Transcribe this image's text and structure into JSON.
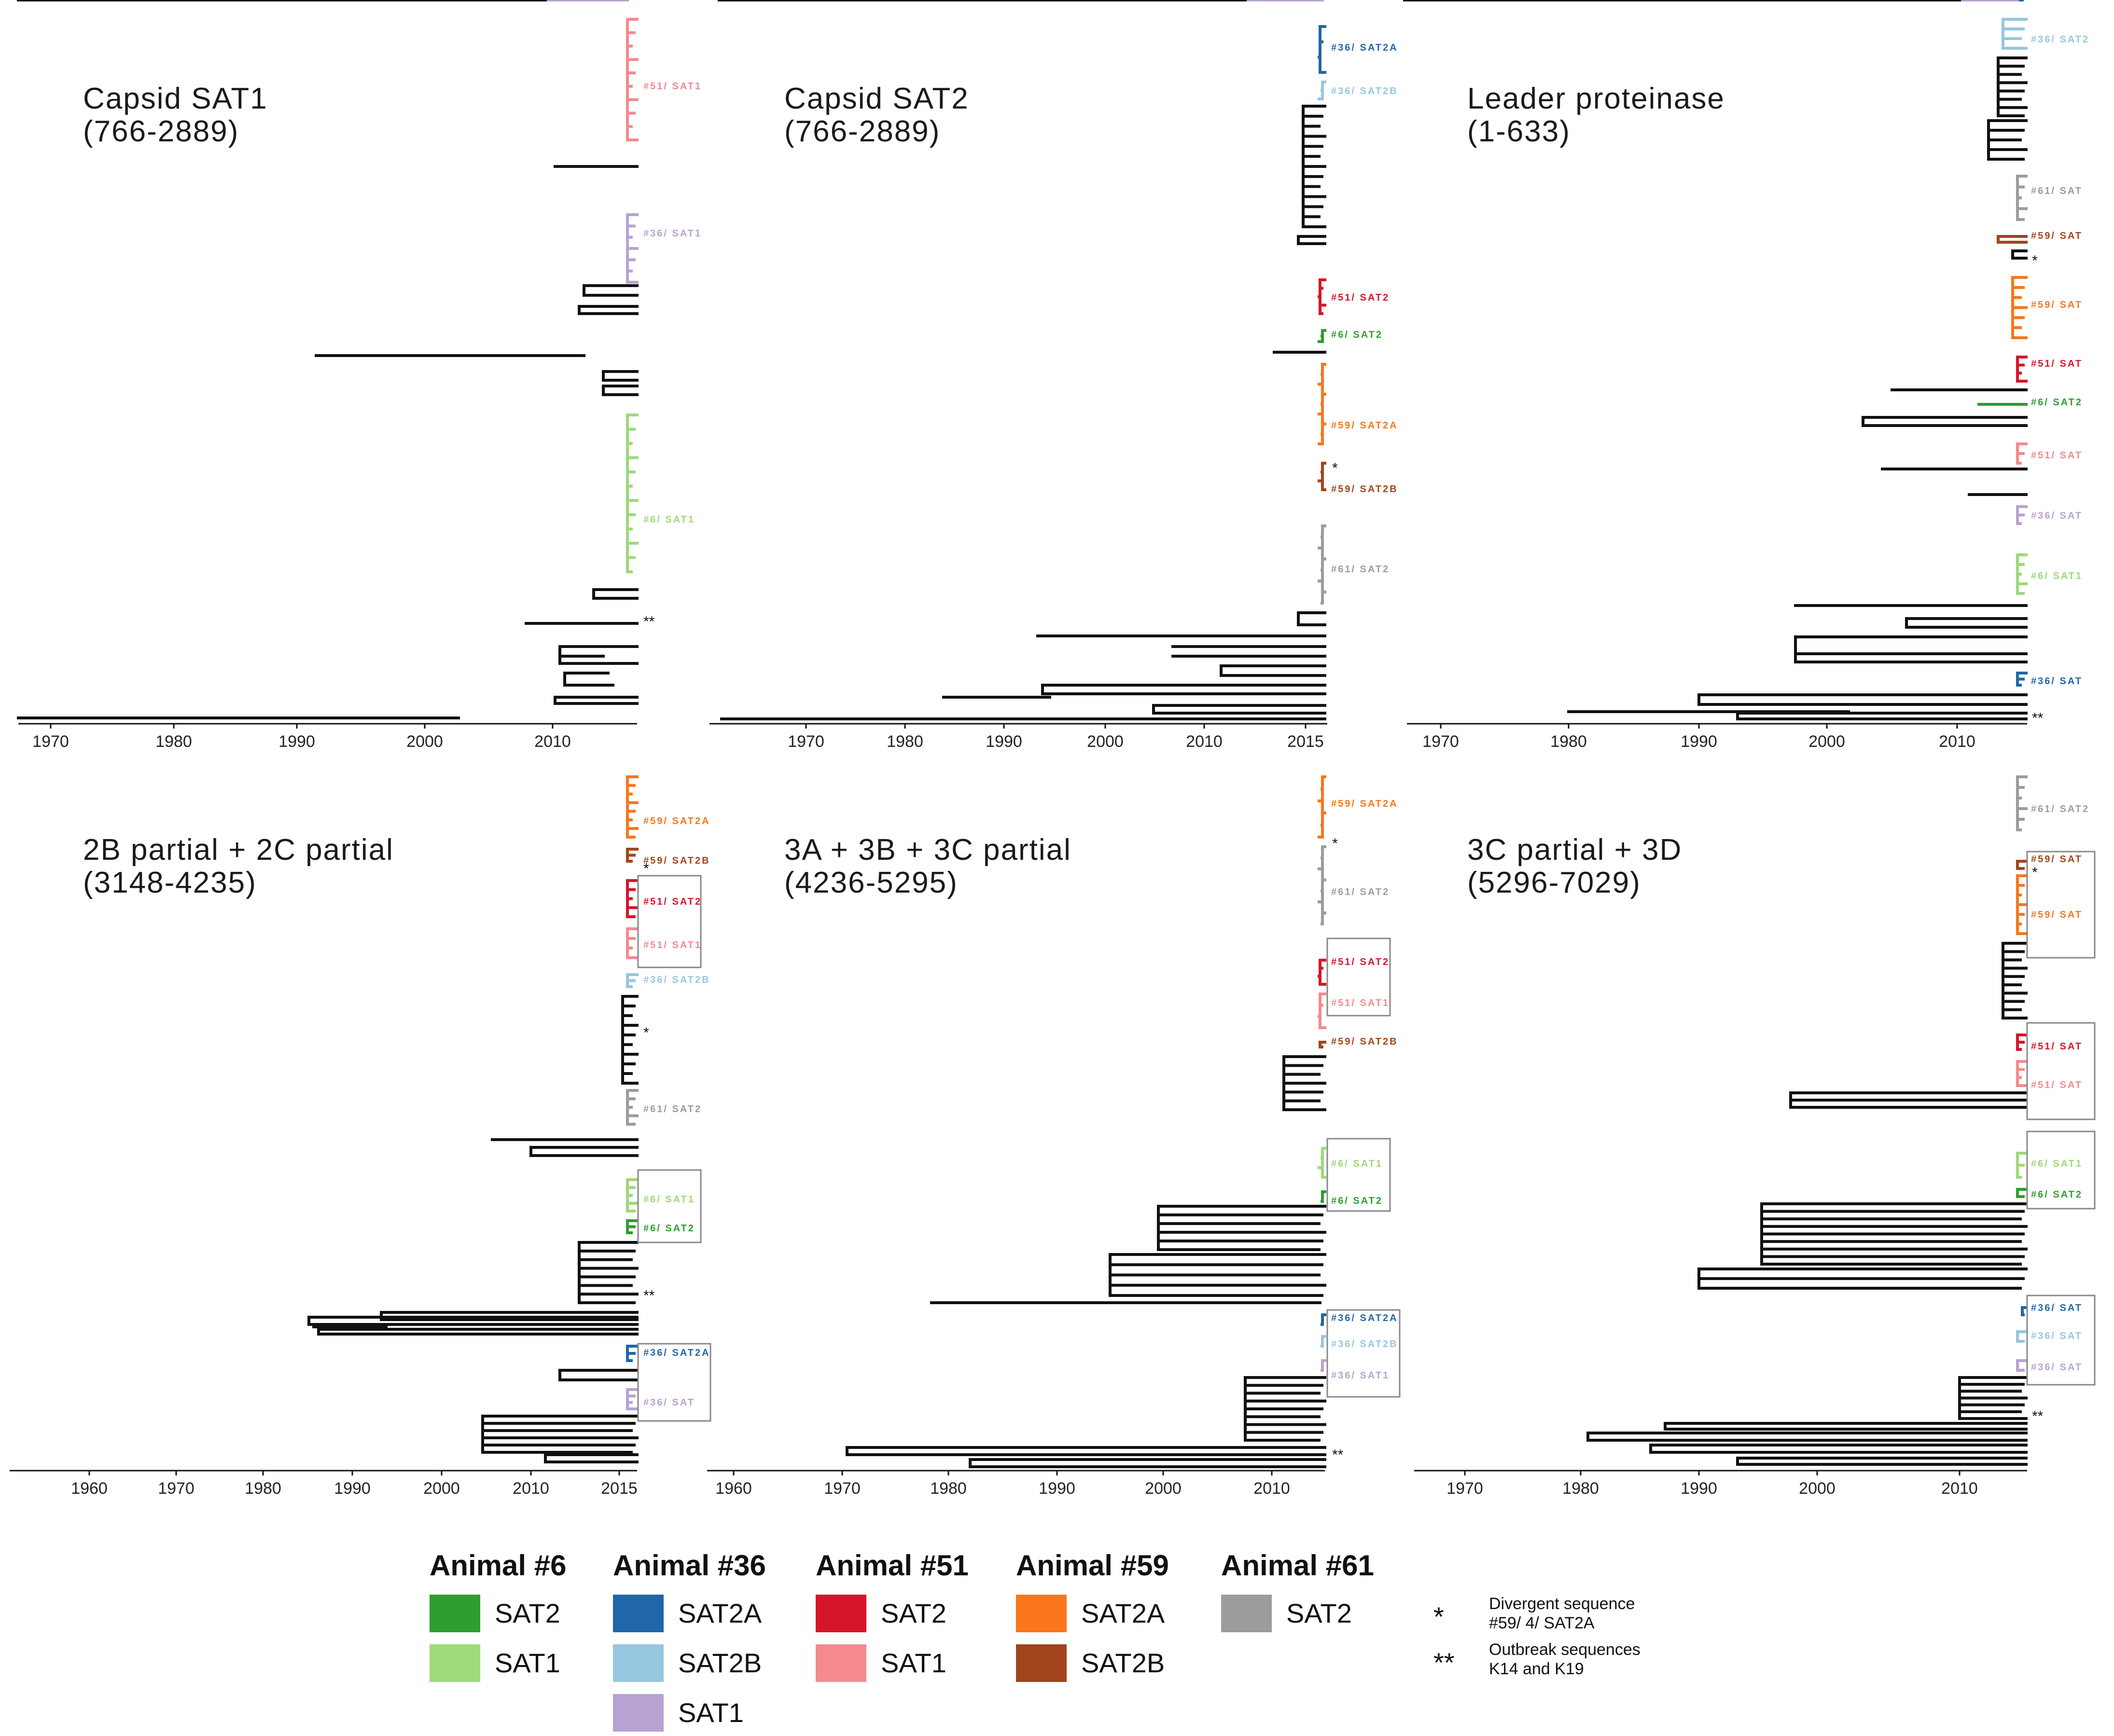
{
  "colors": {
    "a6_sat2": "#2e9e2f",
    "a6_sat1": "#9ed97a",
    "a36_sat2a": "#2166a8",
    "a36_sat2b": "#97c6e0",
    "a36_sat1": "#b8a2d2",
    "a51_sat2": "#d7152a",
    "a51_sat1": "#f48a8e",
    "a59_sat2a": "#f9761b",
    "a59_sat2b": "#a2441c",
    "a61_sat2": "#9c9c9c",
    "black": "#111111"
  },
  "panels": [
    {
      "id": "capsid-sat1",
      "title1": "Capsid SAT1",
      "title2": "(766-2889)",
      "axis_ticks": [
        "1970",
        "1980",
        "1990",
        "2000",
        "2010"
      ],
      "cluster_labels": [
        {
          "text": "#51/ SAT1",
          "color": "a51_sat1"
        },
        {
          "text": "#36/ SAT1",
          "color": "a36_sat1"
        },
        {
          "text": "#6/ SAT1",
          "color": "a6_sat1"
        }
      ],
      "stars": [
        "**"
      ]
    },
    {
      "id": "capsid-sat2",
      "title1": "Capsid SAT2",
      "title2": "(766-2889)",
      "axis_ticks": [
        "1970",
        "1980",
        "1990",
        "2000",
        "2010",
        "2015"
      ],
      "cluster_labels": [
        {
          "text": "#36/ SAT2A",
          "color": "a36_sat2a"
        },
        {
          "text": "#36/ SAT2B",
          "color": "a36_sat2b"
        },
        {
          "text": "#51/ SAT2",
          "color": "a51_sat2"
        },
        {
          "text": "#6/ SAT2",
          "color": "a6_sat2"
        },
        {
          "text": "#59/ SAT2A",
          "color": "a59_sat2a"
        },
        {
          "text": "#59/ SAT2B",
          "color": "a59_sat2b"
        },
        {
          "text": "#61/ SAT2",
          "color": "a61_sat2"
        }
      ],
      "stars": [
        "*"
      ]
    },
    {
      "id": "leader-proteinase",
      "title1": "Leader proteinase",
      "title2": "(1-633)",
      "axis_ticks": [
        "1970",
        "1980",
        "1990",
        "2000",
        "2010"
      ],
      "cluster_labels": [
        {
          "text": "#36/ SAT2",
          "color": "a36_sat2b"
        },
        {
          "text": "#61/ SAT",
          "color": "a61_sat2"
        },
        {
          "text": "#59/ SAT",
          "color": "a59_sat2b"
        },
        {
          "text": "#59/ SAT",
          "color": "a59_sat2a"
        },
        {
          "text": "#51/ SAT",
          "color": "a51_sat2"
        },
        {
          "text": "#6/ SAT2",
          "color": "a6_sat2"
        },
        {
          "text": "#51/ SAT",
          "color": "a51_sat1"
        },
        {
          "text": "#36/ SAT",
          "color": "a36_sat1"
        },
        {
          "text": "#6/ SAT1",
          "color": "a6_sat1"
        },
        {
          "text": "#36/ SAT",
          "color": "a36_sat2a"
        }
      ],
      "stars": [
        "*",
        "**"
      ]
    },
    {
      "id": "2b-2c-partial",
      "title1": "2B partial + 2C partial",
      "title2": "(3148-4235)",
      "axis_ticks": [
        "1960",
        "1970",
        "1980",
        "1990",
        "2000",
        "2010",
        "2015"
      ],
      "cluster_labels": [
        {
          "text": "#59/ SAT2A",
          "color": "a59_sat2a"
        },
        {
          "text": "#59/ SAT2B",
          "color": "a59_sat2b"
        },
        {
          "text": "#51/ SAT2",
          "color": "a51_sat2"
        },
        {
          "text": "#51/ SAT1",
          "color": "a51_sat1"
        },
        {
          "text": "#36/ SAT2B",
          "color": "a36_sat2b"
        },
        {
          "text": "#61/ SAT2",
          "color": "a61_sat2"
        },
        {
          "text": "#6/ SAT1",
          "color": "a6_sat1"
        },
        {
          "text": "#6/ SAT2",
          "color": "a6_sat2"
        },
        {
          "text": "#36/ SAT2A",
          "color": "a36_sat2a"
        },
        {
          "text": "#36/ SAT",
          "color": "a36_sat1"
        }
      ],
      "stars": [
        "*",
        "*",
        "**"
      ]
    },
    {
      "id": "3a-3b-3c-partial",
      "title1": "3A + 3B + 3C partial",
      "title2": "(4236-5295)",
      "axis_ticks": [
        "1960",
        "1970",
        "1980",
        "1990",
        "2000",
        "2010"
      ],
      "cluster_labels": [
        {
          "text": "#59/ SAT2A",
          "color": "a59_sat2a"
        },
        {
          "text": "#61/ SAT2",
          "color": "a61_sat2"
        },
        {
          "text": "#51/ SAT2",
          "color": "a51_sat2"
        },
        {
          "text": "#51/ SAT1",
          "color": "a51_sat1"
        },
        {
          "text": "#59/ SAT2B",
          "color": "a59_sat2b"
        },
        {
          "text": "#6/ SAT1",
          "color": "a6_sat1"
        },
        {
          "text": "#6/ SAT2",
          "color": "a6_sat2"
        },
        {
          "text": "#36/ SAT2A",
          "color": "a36_sat2a"
        },
        {
          "text": "#36/ SAT2B",
          "color": "a36_sat2b"
        },
        {
          "text": "#36/ SAT1",
          "color": "a36_sat1"
        }
      ],
      "stars": [
        "*",
        "**"
      ]
    },
    {
      "id": "3c-partial-3d",
      "title1": "3C partial + 3D",
      "title2": "(5296-7029)",
      "axis_ticks": [
        "1970",
        "1980",
        "1990",
        "2000",
        "2010"
      ],
      "cluster_labels": [
        {
          "text": "#61/ SAT2",
          "color": "a61_sat2"
        },
        {
          "text": "#59/ SAT",
          "color": "a59_sat2b"
        },
        {
          "text": "#59/ SAT",
          "color": "a59_sat2a"
        },
        {
          "text": "#51/ SAT",
          "color": "a51_sat2"
        },
        {
          "text": "#51/ SAT",
          "color": "a51_sat1"
        },
        {
          "text": "#6/ SAT1",
          "color": "a6_sat1"
        },
        {
          "text": "#6/ SAT2",
          "color": "a6_sat2"
        },
        {
          "text": "#36/ SAT",
          "color": "a36_sat2a"
        },
        {
          "text": "#36/ SAT",
          "color": "a36_sat2b"
        },
        {
          "text": "#36/ SAT",
          "color": "a36_sat1"
        }
      ],
      "stars": [
        "*",
        "**"
      ]
    }
  ],
  "legend": {
    "animals": [
      {
        "header": "Animal #6",
        "items": [
          {
            "label": "SAT2",
            "color": "a6_sat2"
          },
          {
            "label": "SAT1",
            "color": "a6_sat1"
          }
        ]
      },
      {
        "header": "Animal #36",
        "items": [
          {
            "label": "SAT2A",
            "color": "a36_sat2a"
          },
          {
            "label": "SAT2B",
            "color": "a36_sat2b"
          },
          {
            "label": "SAT1",
            "color": "a36_sat1"
          }
        ]
      },
      {
        "header": "Animal #51",
        "items": [
          {
            "label": "SAT2",
            "color": "a51_sat2"
          },
          {
            "label": "SAT1",
            "color": "a51_sat1"
          }
        ]
      },
      {
        "header": "Animal #59",
        "items": [
          {
            "label": "SAT2A",
            "color": "a59_sat2a"
          },
          {
            "label": "SAT2B",
            "color": "a59_sat2b"
          }
        ]
      },
      {
        "header": "Animal #61",
        "items": [
          {
            "label": "SAT2",
            "color": "a61_sat2"
          }
        ]
      }
    ],
    "notes": [
      {
        "symbol": "*",
        "line1": "Divergent sequence",
        "line2": "#59/ 4/ SAT2A"
      },
      {
        "symbol": "**",
        "line1": "Outbreak sequences",
        "line2": "K14 and K19"
      }
    ]
  }
}
